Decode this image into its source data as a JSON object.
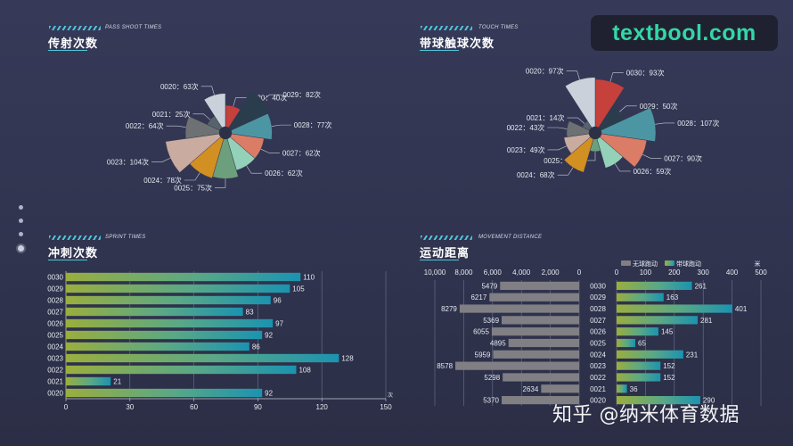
{
  "watermark": "textbool.com",
  "credit": "知乎 @纳米体育数据",
  "nav_dots": 4,
  "charts": {
    "pass": {
      "title": "传射次数",
      "subtitle": "PASS SHOOT TIMES",
      "chart_data": {
        "type": "pie",
        "variant": "rose",
        "label_suffix": "次",
        "slices": [
          {
            "label": "0030",
            "value": 40,
            "color": "#c6403c"
          },
          {
            "label": "0029",
            "value": 82,
            "color": "#2a3d4d"
          },
          {
            "label": "0028",
            "value": 77,
            "color": "#4c96a3"
          },
          {
            "label": "0027",
            "value": 62,
            "color": "#db7c66"
          },
          {
            "label": "0026",
            "value": 62,
            "color": "#93d1b8"
          },
          {
            "label": "0025",
            "value": 75,
            "color": "#6ca07c"
          },
          {
            "label": "0024",
            "value": 78,
            "color": "#d28f22"
          },
          {
            "label": "0023",
            "value": 104,
            "color": "#c9aba0"
          },
          {
            "label": "0022",
            "value": 64,
            "color": "#6d7173"
          },
          {
            "label": "0021",
            "value": 25,
            "color": "#57636c"
          },
          {
            "label": "0020",
            "value": 63,
            "color": "#cad1da"
          }
        ]
      }
    },
    "touch": {
      "title": "带球触球次数",
      "subtitle": "TOUCH TIMES",
      "chart_data": {
        "type": "pie",
        "variant": "rose",
        "label_suffix": "次",
        "slices": [
          {
            "label": "0030",
            "value": 93,
            "color": "#c6403c"
          },
          {
            "label": "0029",
            "value": 50,
            "color": "#2a3d4d"
          },
          {
            "label": "0028",
            "value": 107,
            "color": "#4c96a3"
          },
          {
            "label": "0027",
            "value": 90,
            "color": "#db7c66"
          },
          {
            "label": "0026",
            "value": 59,
            "color": "#93d1b8"
          },
          {
            "label": "0025",
            "value": 23,
            "color": "#6ca07c"
          },
          {
            "label": "0024",
            "value": 68,
            "color": "#d28f22"
          },
          {
            "label": "0023",
            "value": 49,
            "color": "#c9aba0"
          },
          {
            "label": "0022",
            "value": 43,
            "color": "#6d7173"
          },
          {
            "label": "0021",
            "value": 14,
            "color": "#57636c"
          },
          {
            "label": "0020",
            "value": 97,
            "color": "#cad1da"
          }
        ]
      }
    },
    "sprint": {
      "title": "冲刺次数",
      "subtitle": "SPRINT TIMES",
      "chart_data": {
        "type": "bar",
        "orientation": "horizontal",
        "categories": [
          "0030",
          "0029",
          "0028",
          "0027",
          "0026",
          "0025",
          "0024",
          "0023",
          "0022",
          "0021",
          "0020"
        ],
        "values": [
          110,
          105,
          96,
          83,
          97,
          92,
          86,
          128,
          108,
          21,
          92
        ],
        "xlim": [
          0,
          150
        ],
        "xticks": [
          0,
          30,
          60,
          90,
          120,
          150
        ],
        "xunit": "次"
      }
    },
    "distance": {
      "title": "运动距离",
      "subtitle": "MOVEMENT DISTANCE",
      "chart_data": {
        "type": "bar",
        "orientation": "horizontal-butterfly",
        "categories": [
          "0030",
          "0029",
          "0028",
          "0027",
          "0026",
          "0025",
          "0024",
          "0023",
          "0022",
          "0021",
          "0020"
        ],
        "series": [
          {
            "name": "无球跑动",
            "color": "#807f84",
            "values": [
              5479,
              6217,
              8279,
              5369,
              6055,
              4895,
              5959,
              8578,
              5298,
              2634,
              5370
            ],
            "xlim": [
              0,
              10000
            ],
            "xticks": [
              10000,
              8000,
              6000,
              4000,
              2000,
              0
            ],
            "xtick_labels": [
              "10,000",
              "8,000",
              "6,000",
              "4,000",
              "2,000",
              "0"
            ]
          },
          {
            "name": "带球跑动",
            "values": [
              261,
              163,
              401,
              281,
              145,
              65,
              231,
              152,
              152,
              36,
              290
            ],
            "xlim": [
              0,
              500
            ],
            "xticks": [
              0,
              100,
              200,
              300,
              400,
              500
            ]
          }
        ],
        "xunit": "米"
      }
    }
  }
}
